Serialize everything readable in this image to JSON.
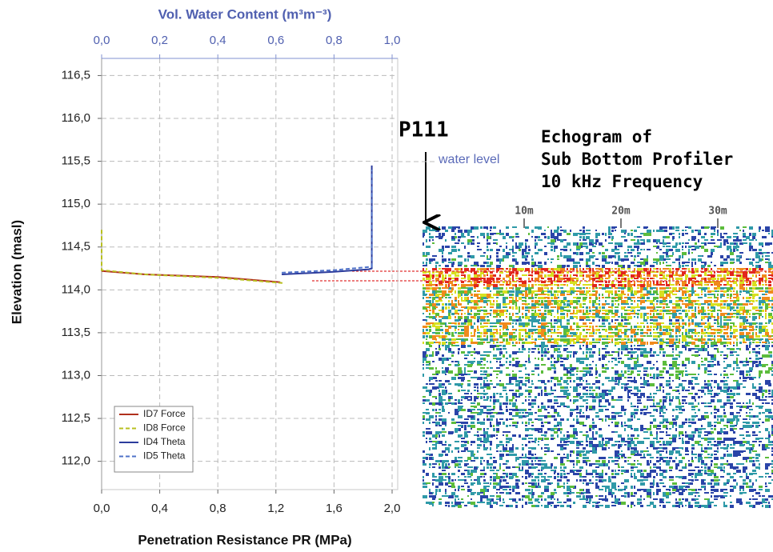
{
  "chart_data": {
    "type": "line",
    "x_label": "Penetration Resistance PR (MPa)",
    "x2_label": "Vol. Water Content (m³m⁻³)",
    "y_label": "Elevation (masl)",
    "xlim": [
      0,
      2.0
    ],
    "xticks": [
      {
        "value": 0,
        "label": "0,0"
      },
      {
        "value": 0.4,
        "label": "0,4"
      },
      {
        "value": 0.8,
        "label": "0,8"
      },
      {
        "value": 1.2,
        "label": "1,2"
      },
      {
        "value": 1.6,
        "label": "1,6"
      },
      {
        "value": 2.0,
        "label": "2,0"
      }
    ],
    "x2lim": [
      0,
      1.0
    ],
    "x2ticks": [
      {
        "value": 0,
        "label": "0,0"
      },
      {
        "value": 0.2,
        "label": "0,2"
      },
      {
        "value": 0.4,
        "label": "0,4"
      },
      {
        "value": 0.6,
        "label": "0,6"
      },
      {
        "value": 0.8,
        "label": "0,8"
      },
      {
        "value": 1.0,
        "label": "1,0"
      }
    ],
    "ylim": [
      111.67,
      116.7
    ],
    "yticks": [
      {
        "value": 112.0,
        "label": "112,0"
      },
      {
        "value": 112.5,
        "label": "112,5"
      },
      {
        "value": 113.0,
        "label": "113,0"
      },
      {
        "value": 113.5,
        "label": "113,5"
      },
      {
        "value": 114.0,
        "label": "114,0"
      },
      {
        "value": 114.5,
        "label": "114,5"
      },
      {
        "value": 115.0,
        "label": "115,0"
      },
      {
        "value": 115.5,
        "label": "115,5"
      },
      {
        "value": 116.0,
        "label": "116,0"
      },
      {
        "value": 116.5,
        "label": "116,5"
      }
    ],
    "grid": true,
    "legend": "lower left",
    "series": [
      {
        "name": "ID7 Force",
        "color": "#b0301c",
        "dash": false,
        "axis": "x",
        "x": [
          0,
          0.3,
          0.8,
          1.23
        ],
        "values": [
          114.22,
          114.18,
          114.15,
          114.09
        ]
      },
      {
        "name": "ID8 Force",
        "color": "#b8c020",
        "dash": true,
        "axis": "x",
        "x": [
          0,
          0,
          0.3,
          0.8,
          1.25
        ],
        "values": [
          114.7,
          114.23,
          114.18,
          114.14,
          114.08
        ]
      },
      {
        "name": "ID4 Theta",
        "color": "#2c3c9c",
        "dash": false,
        "axis": "x2",
        "x": [
          0.62,
          0.8,
          0.92,
          0.93,
          0.93
        ],
        "values": [
          114.18,
          114.21,
          114.24,
          114.25,
          115.45
        ]
      },
      {
        "name": "ID5 Theta",
        "color": "#4f72c8",
        "dash": true,
        "axis": "x2",
        "x": [
          0.62,
          0.8,
          0.93,
          0.93
        ],
        "values": [
          114.2,
          114.23,
          114.27,
          115.4
        ]
      }
    ],
    "annotations": {
      "site": "P111",
      "water_level": "water level",
      "echogram_title": [
        "Echogram of",
        "Sub Bottom Profiler",
        "10 kHz Frequency"
      ],
      "echogram_scale": [
        "10m",
        "20m",
        "30m"
      ]
    }
  }
}
